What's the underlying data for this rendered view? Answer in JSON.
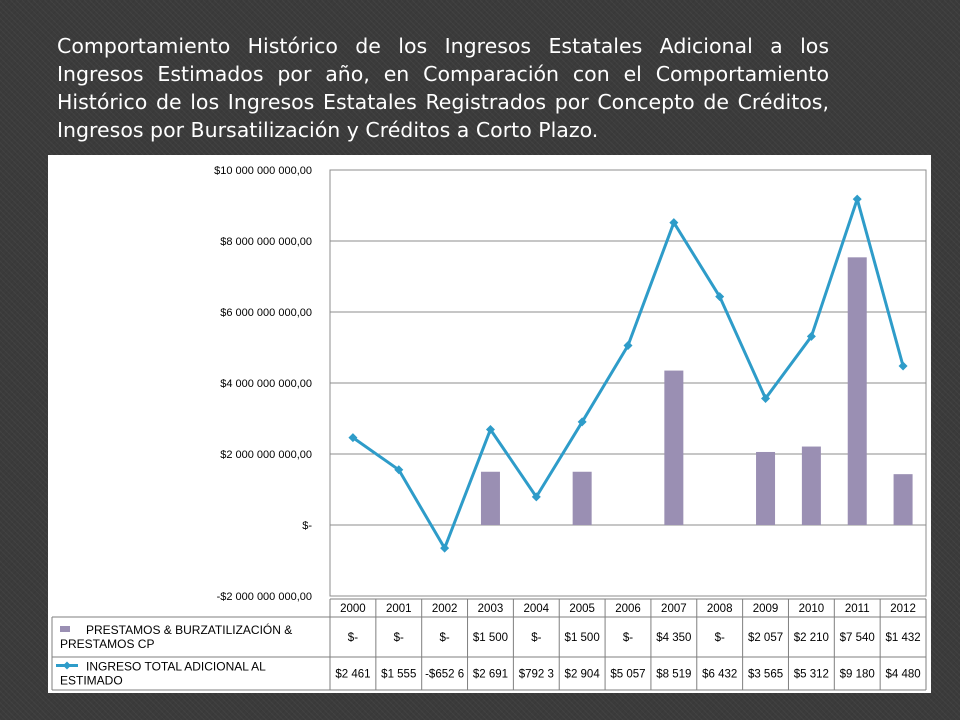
{
  "slide": {
    "title": "Comportamiento Histórico de los Ingresos Estatales Adicional a los Ingresos Estimados por año, en Comparación con el Comportamiento Histórico de los Ingresos Estatales Registrados por Concepto de Créditos, Ingresos por Bursatilización y Créditos a Corto Plazo."
  },
  "chart_data": {
    "type": "bar+line",
    "title": "",
    "xlabel": "",
    "ylabel": "",
    "ylim": [
      -2000000000,
      10000000000
    ],
    "ytick_values": [
      -2000000000,
      0,
      2000000000,
      4000000000,
      6000000000,
      8000000000,
      10000000000
    ],
    "ytick_labels": [
      "-$2 000 000 000,00",
      "$-",
      "$2 000 000 000,00",
      "$4 000 000 000,00",
      "$6 000 000 000,00",
      "$8 000 000 000,00",
      "$10 000 000 000,00"
    ],
    "grid": true,
    "legend": "data-table",
    "categories": [
      "2000",
      "2001",
      "2002",
      "2003",
      "2004",
      "2005",
      "2006",
      "2007",
      "2008",
      "2009",
      "2010",
      "2011",
      "2012"
    ],
    "series": [
      {
        "name": "PRESTAMOS & BURZATILIZACIÓN & PRESTAMOS CP",
        "kind": "bar",
        "color": "#9a8fb3",
        "values": [
          0,
          0,
          0,
          1500000000,
          0,
          1500000000,
          0,
          4350000000,
          0,
          2057000000,
          2210000000,
          7540000000,
          1432000000
        ],
        "table_labels": [
          "$-",
          "$-",
          "$-",
          "$1 500",
          "$-",
          "$1 500",
          "$-",
          "$4 350",
          "$-",
          "$2 057",
          "$2 210",
          "$7 540",
          "$1 432"
        ]
      },
      {
        "name": "INGRESO TOTAL ADICIONAL AL ESTIMADO",
        "kind": "line",
        "color": "#2e9cc9",
        "values": [
          2461000000,
          1555000000,
          -652600000,
          2691000000,
          792300000,
          2904000000,
          5057000000,
          8519000000,
          6432000000,
          3565000000,
          5312000000,
          9180000000,
          4480000000
        ],
        "table_labels": [
          "$2 461",
          "$1 555",
          "-$652 6",
          "$2 691",
          "$792 3",
          "$2 904",
          "$5 057",
          "$8 519",
          "$6 432",
          "$3 565",
          "$5 312",
          "$9 180",
          "$4 480"
        ]
      }
    ]
  }
}
